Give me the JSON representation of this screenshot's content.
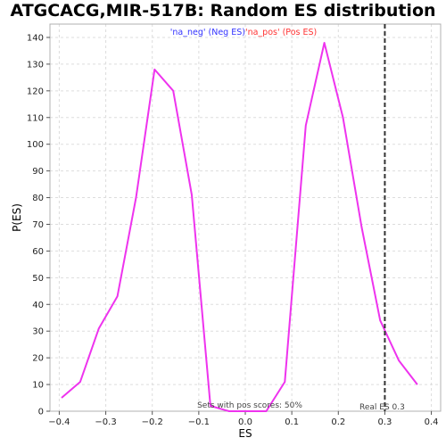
{
  "chart_data": {
    "type": "line",
    "title": "ATGCACG,MIR-517B: Random ES distribution",
    "xlabel": "ES",
    "ylabel": "P(ES)",
    "xlim": [
      -0.42,
      0.42
    ],
    "ylim": [
      0,
      145
    ],
    "xticks": [
      -0.4,
      -0.3,
      -0.2,
      -0.1,
      0.0,
      0.1,
      0.2,
      0.3,
      0.4
    ],
    "xtick_labels": [
      "−0.4",
      "−0.3",
      "−0.2",
      "−0.1",
      "0.0",
      "0.1",
      "0.2",
      "0.3",
      "0.4"
    ],
    "yticks": [
      0,
      10,
      20,
      30,
      40,
      50,
      60,
      70,
      80,
      90,
      100,
      110,
      120,
      130,
      140
    ],
    "ytick_labels": [
      "0",
      "10",
      "20",
      "30",
      "40",
      "50",
      "60",
      "70",
      "80",
      "90",
      "100",
      "110",
      "120",
      "130",
      "140"
    ],
    "grid": true,
    "legend_position": "top-center",
    "legend": [
      {
        "text": "'na_neg' (Neg ES)",
        "color": "#3333ff"
      },
      {
        "text": "'na_pos' (Pos ES)",
        "color": "#ff3333"
      }
    ],
    "series": [
      {
        "color": "#ee33ee",
        "x": [
          -0.395,
          -0.355,
          -0.315,
          -0.275,
          -0.235,
          -0.195,
          -0.155,
          -0.115,
          -0.075,
          -0.035,
          0.005,
          0.045,
          0.085,
          0.13,
          0.17,
          0.21,
          0.25,
          0.29,
          0.33,
          0.37
        ],
        "y": [
          5,
          11,
          31,
          43,
          80,
          128,
          120,
          81,
          2,
          0,
          0,
          0,
          11,
          107,
          138,
          110,
          69,
          34,
          19,
          10
        ]
      }
    ],
    "reference_line": {
      "x": 0.3,
      "label": "Real ES 0.3",
      "color": "#333333"
    },
    "annotation": "Sets with pos scores: 50%"
  }
}
